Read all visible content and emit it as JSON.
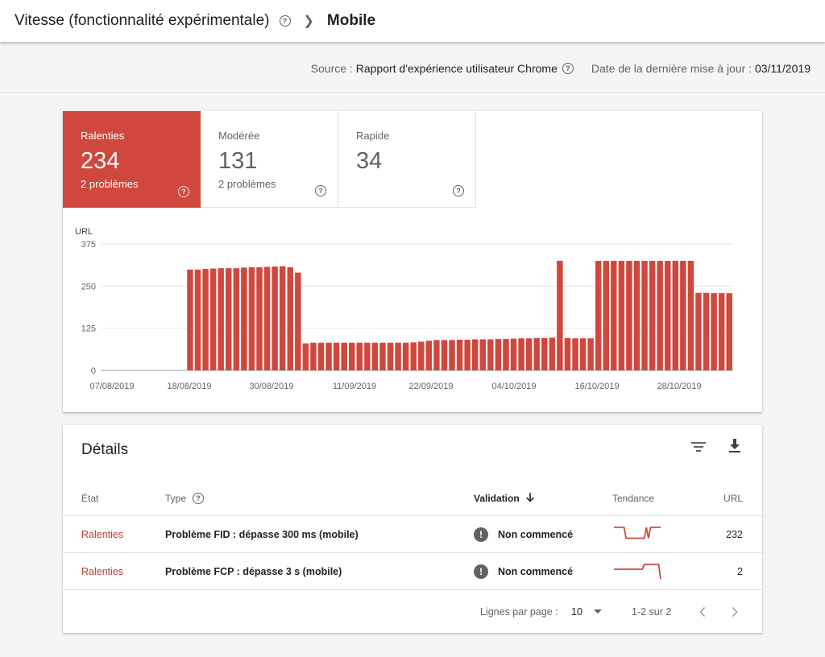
{
  "header": {
    "section_title": "Vitesse (fonctionnalité expérimentale)",
    "current_page": "Mobile"
  },
  "source_bar": {
    "source_label": "Source :",
    "source_value": "Rapport d'expérience utilisateur Chrome",
    "updated_label": "Date de la dernière mise à jour :",
    "updated_value": "03/11/2019"
  },
  "tiles": [
    {
      "label": "Ralenties",
      "value": "234",
      "sub": "2 problèmes",
      "active": true
    },
    {
      "label": "Modérée",
      "value": "131",
      "sub": "2 problèmes",
      "active": false
    },
    {
      "label": "Rapide",
      "value": "34",
      "sub": "",
      "active": false
    }
  ],
  "chart_data": {
    "type": "bar",
    "ylabel": "URL",
    "ylim": [
      0,
      375
    ],
    "yticks": [
      "375",
      "250",
      "125",
      "0"
    ],
    "xticks": [
      "07/08/2019",
      "18/08/2019",
      "30/08/2019",
      "11/09/2019",
      "22/09/2019",
      "04/10/2019",
      "16/10/2019",
      "28/10/2019"
    ],
    "color": "#d0473d",
    "grid": true,
    "values": [
      0,
      0,
      0,
      0,
      0,
      0,
      0,
      0,
      0,
      0,
      0,
      299,
      299,
      301,
      302,
      303,
      303,
      303,
      305,
      306,
      306,
      307,
      308,
      309,
      306,
      290,
      80,
      82,
      82,
      82,
      82,
      82,
      82,
      82,
      82,
      82,
      82,
      82,
      82,
      82,
      83,
      85,
      88,
      90,
      90,
      90,
      91,
      91,
      92,
      92,
      92,
      93,
      93,
      94,
      95,
      95,
      96,
      96,
      97,
      325,
      96,
      95,
      95,
      95,
      325,
      325,
      325,
      325,
      325,
      325,
      325,
      325,
      325,
      325,
      325,
      325,
      325,
      230,
      230,
      229,
      229,
      229
    ]
  },
  "details": {
    "title": "Détails",
    "columns": {
      "state": "État",
      "type": "Type",
      "validation": "Validation",
      "trend": "Tendance",
      "url": "URL"
    },
    "rows": [
      {
        "state": "Ralenties",
        "type": "Problème FID : dépasse 300 ms (mobile)",
        "validation": "Non commencé",
        "url": "232",
        "trend": [
          16,
          16,
          16,
          16,
          16,
          16,
          4,
          4,
          4,
          4,
          4,
          4,
          4,
          4,
          4,
          4,
          16,
          4,
          16,
          16,
          16,
          16,
          16,
          16
        ]
      },
      {
        "state": "Ralenties",
        "type": "Problème FCP : dépasse 3 s (mobile)",
        "validation": "Non commencé",
        "url": "2",
        "trend": [
          2,
          2,
          2,
          2,
          2,
          2,
          2,
          2,
          2,
          2,
          2,
          2,
          2,
          2,
          2,
          3,
          3,
          3,
          3,
          3,
          3,
          3,
          3,
          0
        ]
      }
    ],
    "pagination": {
      "rows_per_page_label": "Lignes par page :",
      "rows_per_page_value": "10",
      "range": "1-2 sur 2"
    }
  }
}
